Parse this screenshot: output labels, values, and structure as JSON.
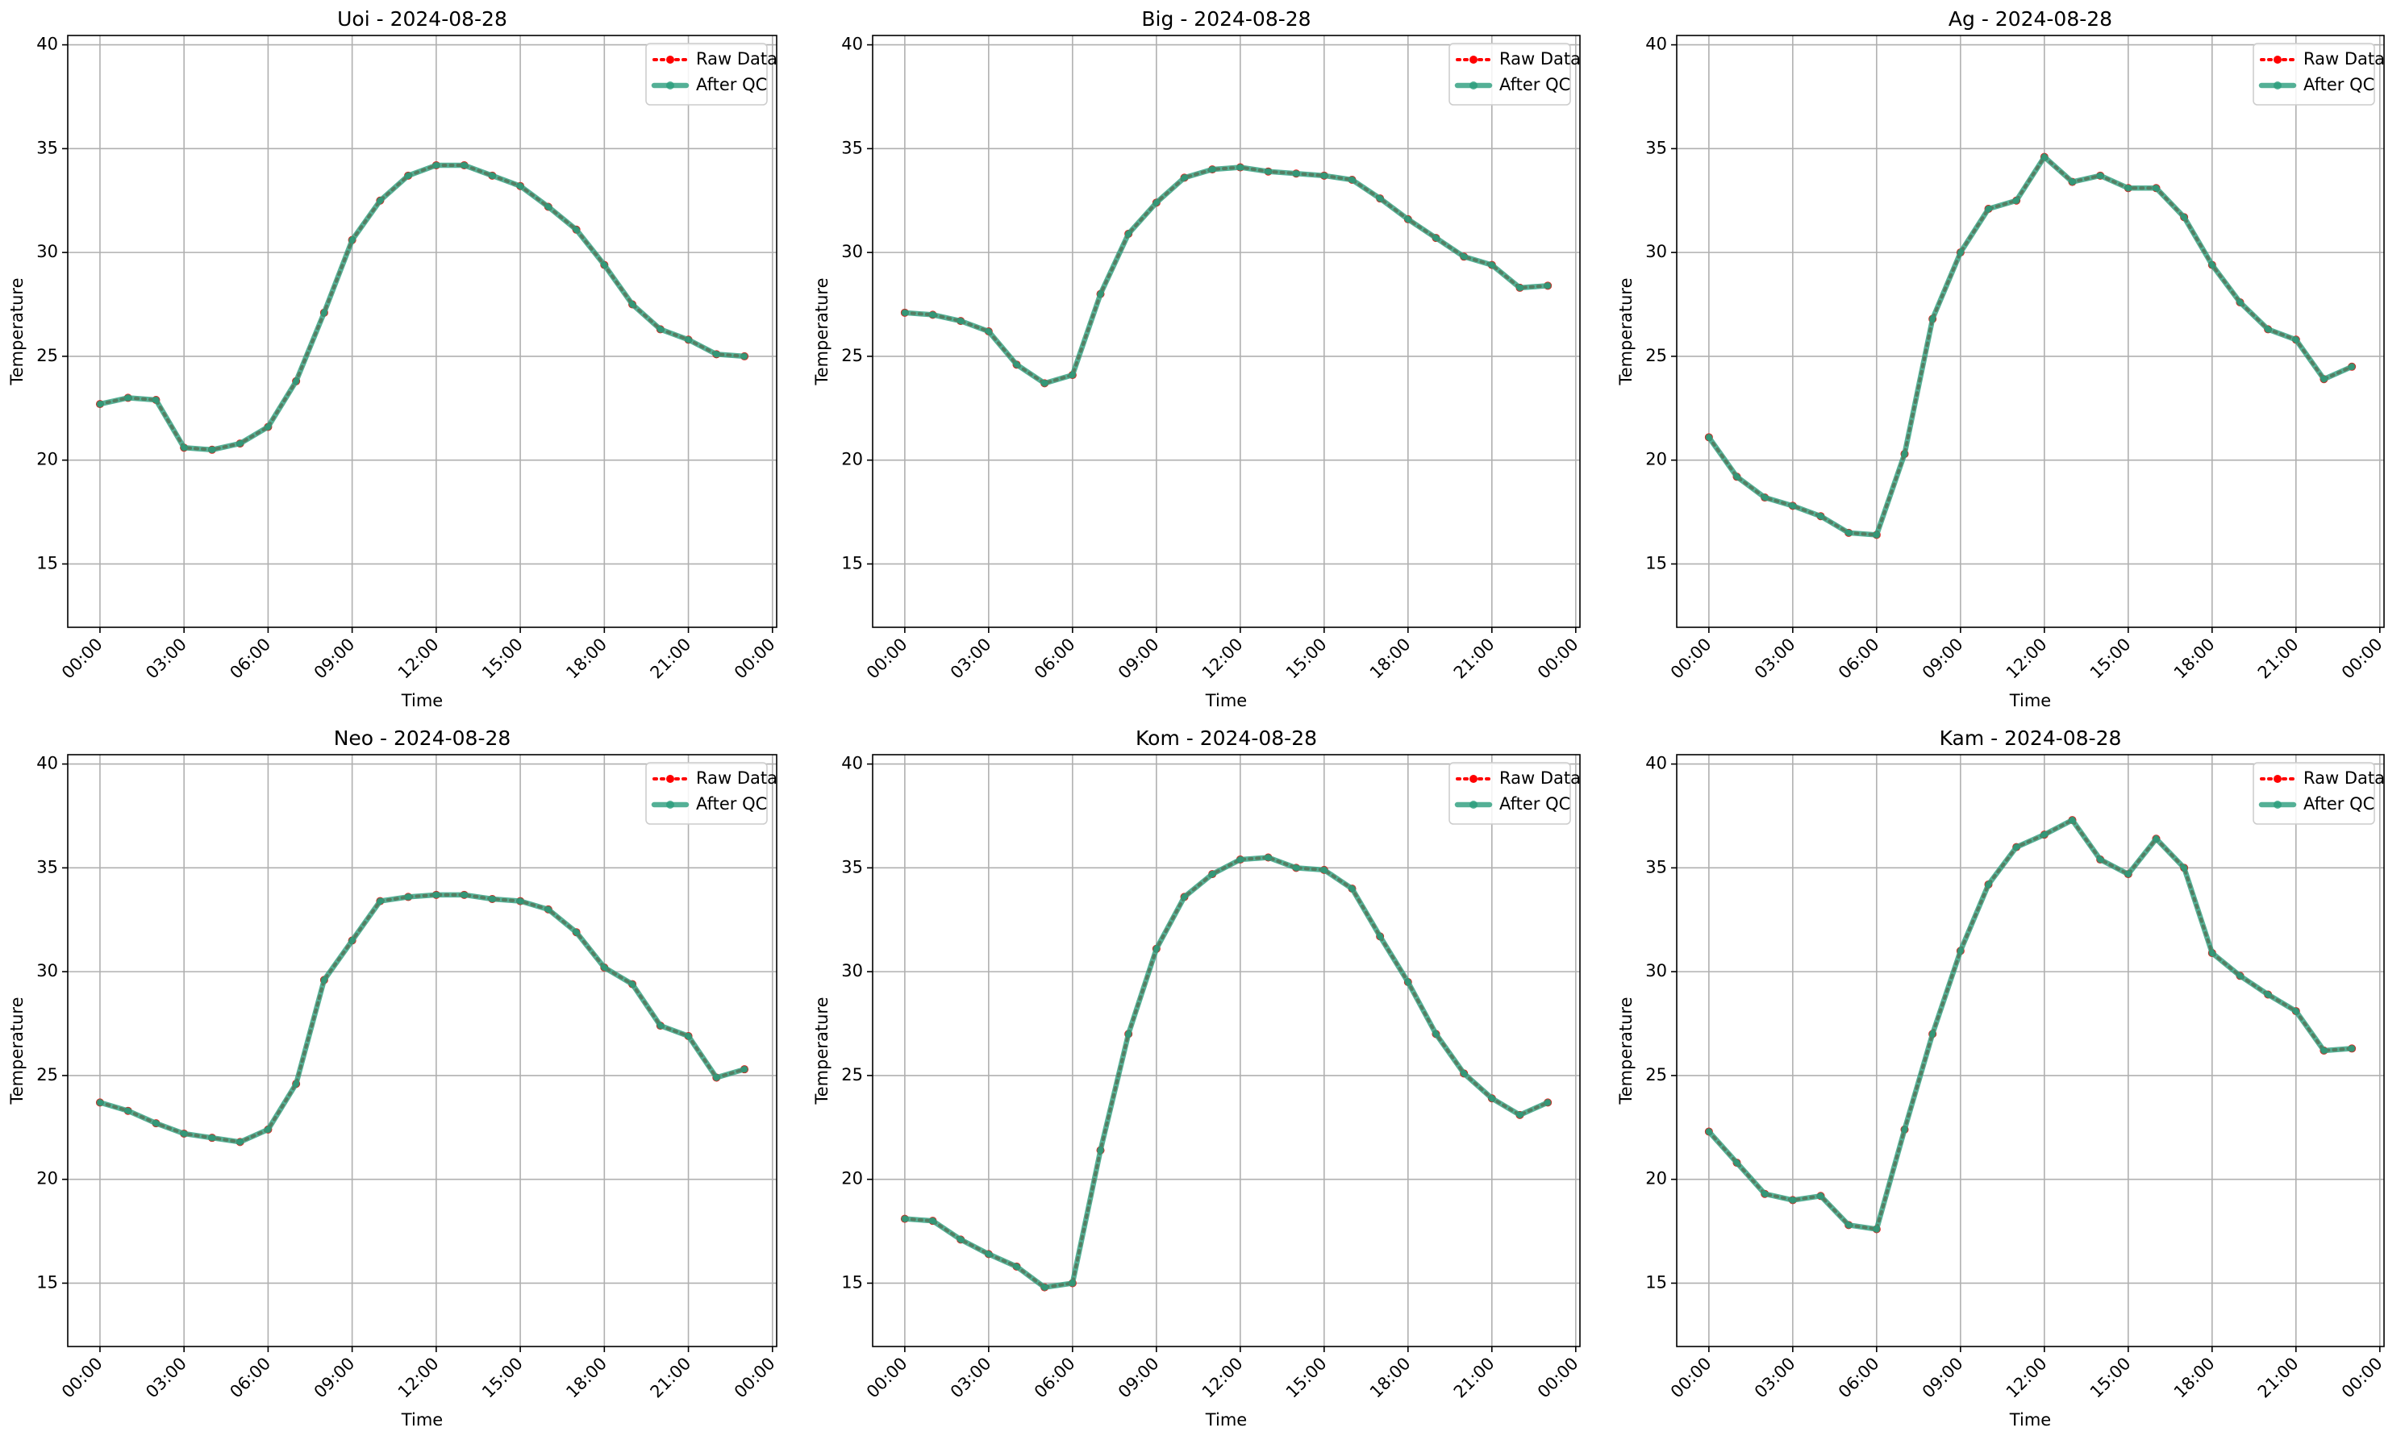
{
  "chart_data": [
    {
      "type": "line",
      "title": "Uoi - 2024-08-28",
      "xlabel": "Time",
      "ylabel": "Temperature",
      "x": [
        0,
        1,
        2,
        3,
        4,
        5,
        6,
        7,
        8,
        9,
        10,
        11,
        12,
        13,
        14,
        15,
        16,
        17,
        18,
        19,
        20,
        21,
        22,
        23
      ],
      "series": [
        {
          "name": "Raw Data",
          "color": "red",
          "values": [
            22.7,
            23.0,
            22.9,
            20.6,
            20.5,
            20.8,
            21.6,
            23.8,
            27.1,
            30.6,
            32.5,
            33.7,
            34.2,
            34.2,
            33.7,
            33.2,
            32.2,
            31.1,
            29.4,
            27.5,
            26.3,
            25.8,
            25.1,
            25.0
          ]
        },
        {
          "name": "After QC",
          "color": "#2a9d7c",
          "values": [
            22.7,
            23.0,
            22.9,
            20.6,
            20.5,
            20.8,
            21.6,
            23.8,
            27.1,
            30.6,
            32.5,
            33.7,
            34.2,
            34.2,
            33.7,
            33.2,
            32.2,
            31.1,
            29.4,
            27.5,
            26.3,
            25.8,
            25.1,
            25.0
          ]
        }
      ],
      "xlim": [
        -1.15,
        24.15
      ],
      "ylim": [
        11.95,
        40.45
      ],
      "xticks": [
        {
          "value": 0,
          "label": "00:00"
        },
        {
          "value": 3,
          "label": "03:00"
        },
        {
          "value": 6,
          "label": "06:00"
        },
        {
          "value": 9,
          "label": "09:00"
        },
        {
          "value": 12,
          "label": "12:00"
        },
        {
          "value": 15,
          "label": "15:00"
        },
        {
          "value": 18,
          "label": "18:00"
        },
        {
          "value": 21,
          "label": "21:00"
        },
        {
          "value": 24,
          "label": "00:00"
        }
      ],
      "yticks": [
        15,
        20,
        25,
        30,
        35,
        40
      ],
      "grid": true,
      "legend": "upper right"
    },
    {
      "type": "line",
      "title": "Big - 2024-08-28",
      "xlabel": "Time",
      "ylabel": "Temperature",
      "x": [
        0,
        1,
        2,
        3,
        4,
        5,
        6,
        7,
        8,
        9,
        10,
        11,
        12,
        13,
        14,
        15,
        16,
        17,
        18,
        19,
        20,
        21,
        22,
        23
      ],
      "series": [
        {
          "name": "Raw Data",
          "color": "red",
          "values": [
            27.1,
            27.0,
            26.7,
            26.2,
            24.6,
            23.7,
            24.1,
            28.0,
            30.9,
            32.4,
            33.6,
            34.0,
            34.1,
            33.9,
            33.8,
            33.7,
            33.5,
            32.6,
            31.6,
            30.7,
            29.8,
            29.4,
            28.3,
            28.4
          ]
        },
        {
          "name": "After QC",
          "color": "#2a9d7c",
          "values": [
            27.1,
            27.0,
            26.7,
            26.2,
            24.6,
            23.7,
            24.1,
            28.0,
            30.9,
            32.4,
            33.6,
            34.0,
            34.1,
            33.9,
            33.8,
            33.7,
            33.5,
            32.6,
            31.6,
            30.7,
            29.8,
            29.4,
            28.3,
            28.4
          ]
        }
      ],
      "xlim": [
        -1.15,
        24.15
      ],
      "ylim": [
        11.95,
        40.45
      ],
      "xticks": [
        {
          "value": 0,
          "label": "00:00"
        },
        {
          "value": 3,
          "label": "03:00"
        },
        {
          "value": 6,
          "label": "06:00"
        },
        {
          "value": 9,
          "label": "09:00"
        },
        {
          "value": 12,
          "label": "12:00"
        },
        {
          "value": 15,
          "label": "15:00"
        },
        {
          "value": 18,
          "label": "18:00"
        },
        {
          "value": 21,
          "label": "21:00"
        },
        {
          "value": 24,
          "label": "00:00"
        }
      ],
      "yticks": [
        15,
        20,
        25,
        30,
        35,
        40
      ],
      "grid": true,
      "legend": "upper right"
    },
    {
      "type": "line",
      "title": "Ag - 2024-08-28",
      "xlabel": "Time",
      "ylabel": "Temperature",
      "x": [
        0,
        1,
        2,
        3,
        4,
        5,
        6,
        7,
        8,
        9,
        10,
        11,
        12,
        13,
        14,
        15,
        16,
        17,
        18,
        19,
        20,
        21,
        22,
        23
      ],
      "series": [
        {
          "name": "Raw Data",
          "color": "red",
          "values": [
            21.1,
            19.2,
            18.2,
            17.8,
            17.3,
            16.5,
            16.4,
            20.3,
            26.8,
            30.0,
            32.1,
            32.5,
            34.6,
            33.4,
            33.7,
            33.1,
            33.1,
            31.7,
            29.4,
            27.6,
            26.3,
            25.8,
            23.9,
            24.5
          ]
        },
        {
          "name": "After QC",
          "color": "#2a9d7c",
          "values": [
            21.1,
            19.2,
            18.2,
            17.8,
            17.3,
            16.5,
            16.4,
            20.3,
            26.8,
            30.0,
            32.1,
            32.5,
            34.6,
            33.4,
            33.7,
            33.1,
            33.1,
            31.7,
            29.4,
            27.6,
            26.3,
            25.8,
            23.9,
            24.5
          ]
        }
      ],
      "xlim": [
        -1.15,
        24.15
      ],
      "ylim": [
        11.95,
        40.45
      ],
      "xticks": [
        {
          "value": 0,
          "label": "00:00"
        },
        {
          "value": 3,
          "label": "03:00"
        },
        {
          "value": 6,
          "label": "06:00"
        },
        {
          "value": 9,
          "label": "09:00"
        },
        {
          "value": 12,
          "label": "12:00"
        },
        {
          "value": 15,
          "label": "15:00"
        },
        {
          "value": 18,
          "label": "18:00"
        },
        {
          "value": 21,
          "label": "21:00"
        },
        {
          "value": 24,
          "label": "00:00"
        }
      ],
      "yticks": [
        15,
        20,
        25,
        30,
        35,
        40
      ],
      "grid": true,
      "legend": "upper right"
    },
    {
      "type": "line",
      "title": "Neo - 2024-08-28",
      "xlabel": "Time",
      "ylabel": "Temperature",
      "x": [
        0,
        1,
        2,
        3,
        4,
        5,
        6,
        7,
        8,
        9,
        10,
        11,
        12,
        13,
        14,
        15,
        16,
        17,
        18,
        19,
        20,
        21,
        22,
        23
      ],
      "series": [
        {
          "name": "Raw Data",
          "color": "red",
          "values": [
            23.7,
            23.3,
            22.7,
            22.2,
            22.0,
            21.8,
            22.4,
            24.6,
            29.6,
            31.5,
            33.4,
            33.6,
            33.7,
            33.7,
            33.5,
            33.4,
            33.0,
            31.9,
            30.2,
            29.4,
            27.4,
            26.9,
            24.9,
            25.3
          ]
        },
        {
          "name": "After QC",
          "color": "#2a9d7c",
          "values": [
            23.7,
            23.3,
            22.7,
            22.2,
            22.0,
            21.8,
            22.4,
            24.6,
            29.6,
            31.5,
            33.4,
            33.6,
            33.7,
            33.7,
            33.5,
            33.4,
            33.0,
            31.9,
            30.2,
            29.4,
            27.4,
            26.9,
            24.9,
            25.3
          ]
        }
      ],
      "xlim": [
        -1.15,
        24.15
      ],
      "ylim": [
        11.95,
        40.45
      ],
      "xticks": [
        {
          "value": 0,
          "label": "00:00"
        },
        {
          "value": 3,
          "label": "03:00"
        },
        {
          "value": 6,
          "label": "06:00"
        },
        {
          "value": 9,
          "label": "09:00"
        },
        {
          "value": 12,
          "label": "12:00"
        },
        {
          "value": 15,
          "label": "15:00"
        },
        {
          "value": 18,
          "label": "18:00"
        },
        {
          "value": 21,
          "label": "21:00"
        },
        {
          "value": 24,
          "label": "00:00"
        }
      ],
      "yticks": [
        15,
        20,
        25,
        30,
        35,
        40
      ],
      "grid": true,
      "legend": "upper right"
    },
    {
      "type": "line",
      "title": "Kom - 2024-08-28",
      "xlabel": "Time",
      "ylabel": "Temperature",
      "x": [
        0,
        1,
        2,
        3,
        4,
        5,
        6,
        7,
        8,
        9,
        10,
        11,
        12,
        13,
        14,
        15,
        16,
        17,
        18,
        19,
        20,
        21,
        22,
        23
      ],
      "series": [
        {
          "name": "Raw Data",
          "color": "red",
          "values": [
            18.1,
            18.0,
            17.1,
            16.4,
            15.8,
            14.8,
            15.0,
            21.4,
            27.0,
            31.1,
            33.6,
            34.7,
            35.4,
            35.5,
            35.0,
            34.9,
            34.0,
            31.7,
            29.5,
            27.0,
            25.1,
            23.9,
            23.1,
            23.7
          ]
        },
        {
          "name": "After QC",
          "color": "#2a9d7c",
          "values": [
            18.1,
            18.0,
            17.1,
            16.4,
            15.8,
            14.8,
            15.0,
            21.4,
            27.0,
            31.1,
            33.6,
            34.7,
            35.4,
            35.5,
            35.0,
            34.9,
            34.0,
            31.7,
            29.5,
            27.0,
            25.1,
            23.9,
            23.1,
            23.7
          ]
        }
      ],
      "xlim": [
        -1.15,
        24.15
      ],
      "ylim": [
        11.95,
        40.45
      ],
      "xticks": [
        {
          "value": 0,
          "label": "00:00"
        },
        {
          "value": 3,
          "label": "03:00"
        },
        {
          "value": 6,
          "label": "06:00"
        },
        {
          "value": 9,
          "label": "09:00"
        },
        {
          "value": 12,
          "label": "12:00"
        },
        {
          "value": 15,
          "label": "15:00"
        },
        {
          "value": 18,
          "label": "18:00"
        },
        {
          "value": 21,
          "label": "21:00"
        },
        {
          "value": 24,
          "label": "00:00"
        }
      ],
      "yticks": [
        15,
        20,
        25,
        30,
        35,
        40
      ],
      "grid": true,
      "legend": "upper right"
    },
    {
      "type": "line",
      "title": "Kam - 2024-08-28",
      "xlabel": "Time",
      "ylabel": "Temperature",
      "x": [
        0,
        1,
        2,
        3,
        4,
        5,
        6,
        7,
        8,
        9,
        10,
        11,
        12,
        13,
        14,
        15,
        16,
        17,
        18,
        19,
        20,
        21,
        22,
        23
      ],
      "series": [
        {
          "name": "Raw Data",
          "color": "red",
          "values": [
            22.3,
            20.8,
            19.3,
            19.0,
            19.2,
            17.8,
            17.6,
            22.4,
            27.0,
            31.0,
            34.2,
            36.0,
            36.6,
            37.3,
            35.4,
            34.7,
            36.4,
            35.0,
            30.9,
            29.8,
            28.9,
            28.1,
            26.2,
            26.3
          ]
        },
        {
          "name": "After QC",
          "color": "#2a9d7c",
          "values": [
            22.3,
            20.8,
            19.3,
            19.0,
            19.2,
            17.8,
            17.6,
            22.4,
            27.0,
            31.0,
            34.2,
            36.0,
            36.6,
            37.3,
            35.4,
            34.7,
            36.4,
            35.0,
            30.9,
            29.8,
            28.9,
            28.1,
            26.2,
            26.3
          ]
        }
      ],
      "xlim": [
        -1.15,
        24.15
      ],
      "ylim": [
        11.95,
        40.45
      ],
      "xticks": [
        {
          "value": 0,
          "label": "00:00"
        },
        {
          "value": 3,
          "label": "03:00"
        },
        {
          "value": 6,
          "label": "06:00"
        },
        {
          "value": 9,
          "label": "09:00"
        },
        {
          "value": 12,
          "label": "12:00"
        },
        {
          "value": 15,
          "label": "15:00"
        },
        {
          "value": 18,
          "label": "18:00"
        },
        {
          "value": 21,
          "label": "21:00"
        },
        {
          "value": 24,
          "label": "00:00"
        }
      ],
      "yticks": [
        15,
        20,
        25,
        30,
        35,
        40
      ],
      "grid": true,
      "legend": "upper right"
    }
  ]
}
